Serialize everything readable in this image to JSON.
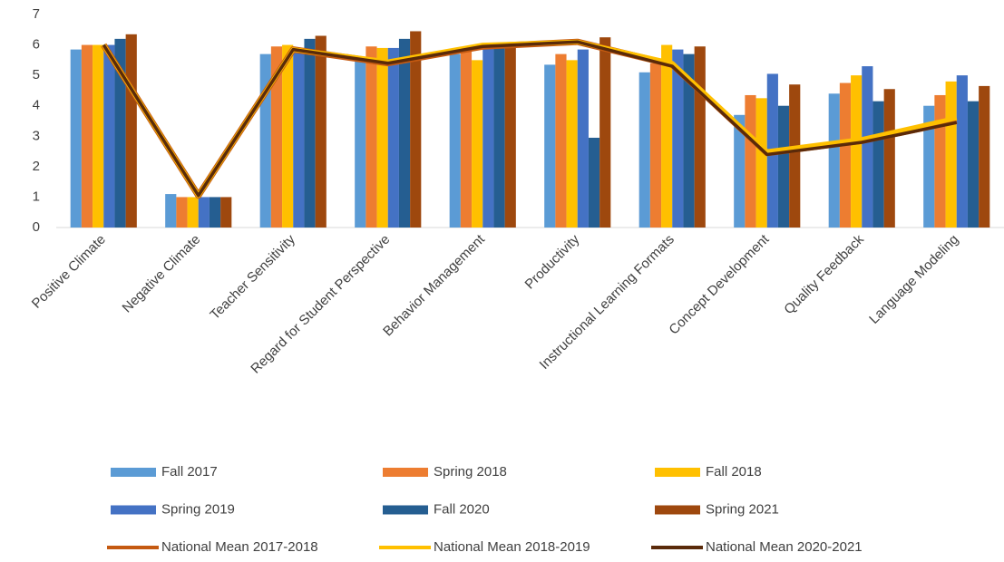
{
  "chart_data": {
    "type": "bar",
    "categories": [
      "Positive Climate",
      "Negative Climate",
      "Teacher Sensitivity",
      "Regard for Student Perspective",
      "Behavior Management",
      "Productivity",
      "Instructional Learning Formats",
      "Concept Development",
      "Quality Feedback",
      "Language Modeling"
    ],
    "ylim": [
      0,
      7
    ],
    "yticks": [
      0,
      1,
      2,
      3,
      4,
      5,
      6,
      7
    ],
    "grid": false,
    "series": [
      {
        "name": "Fall 2017",
        "color": "#5b9bd5",
        "values": [
          5.85,
          1.1,
          5.7,
          5.5,
          5.7,
          5.35,
          5.1,
          3.7,
          4.4,
          4.0
        ]
      },
      {
        "name": "Spring 2018",
        "color": "#ed7d31",
        "values": [
          6.0,
          1.0,
          5.95,
          5.95,
          5.8,
          5.7,
          5.4,
          4.35,
          4.75,
          4.35
        ]
      },
      {
        "name": "Fall 2018",
        "color": "#ffc000",
        "values": [
          6.0,
          1.0,
          6.0,
          5.9,
          5.5,
          5.5,
          6.0,
          4.25,
          5.0,
          4.8
        ]
      },
      {
        "name": "Spring 2019",
        "color": "#4472c4",
        "values": [
          6.0,
          1.0,
          5.9,
          5.9,
          6.0,
          5.85,
          5.85,
          5.05,
          5.3,
          5.0
        ]
      },
      {
        "name": "Fall 2020",
        "color": "#255e91",
        "values": [
          6.2,
          1.0,
          6.2,
          6.2,
          6.0,
          2.95,
          5.7,
          4.0,
          4.15,
          4.15
        ]
      },
      {
        "name": "Spring 2021",
        "color": "#9e480e",
        "values": [
          6.35,
          1.0,
          6.3,
          6.45,
          6.0,
          6.25,
          5.95,
          4.7,
          4.55,
          4.65
        ]
      },
      {
        "name": "National Mean  2017-2018",
        "type": "line",
        "color": "#c55a11",
        "values": [
          6.0,
          1.05,
          5.85,
          5.4,
          5.95,
          6.1,
          5.35,
          2.45,
          2.85,
          3.5
        ]
      },
      {
        "name": "National Mean  2018-2019",
        "type": "line",
        "color": "#ffc000",
        "values": [
          6.0,
          1.05,
          5.85,
          5.45,
          6.0,
          6.1,
          5.4,
          2.5,
          2.9,
          3.6
        ]
      },
      {
        "name": "National Mean  2020-2021",
        "type": "line",
        "color": "#5a2a0a",
        "values": [
          6.0,
          1.05,
          5.85,
          5.4,
          5.95,
          6.1,
          5.3,
          2.4,
          2.8,
          3.45
        ]
      }
    ]
  }
}
